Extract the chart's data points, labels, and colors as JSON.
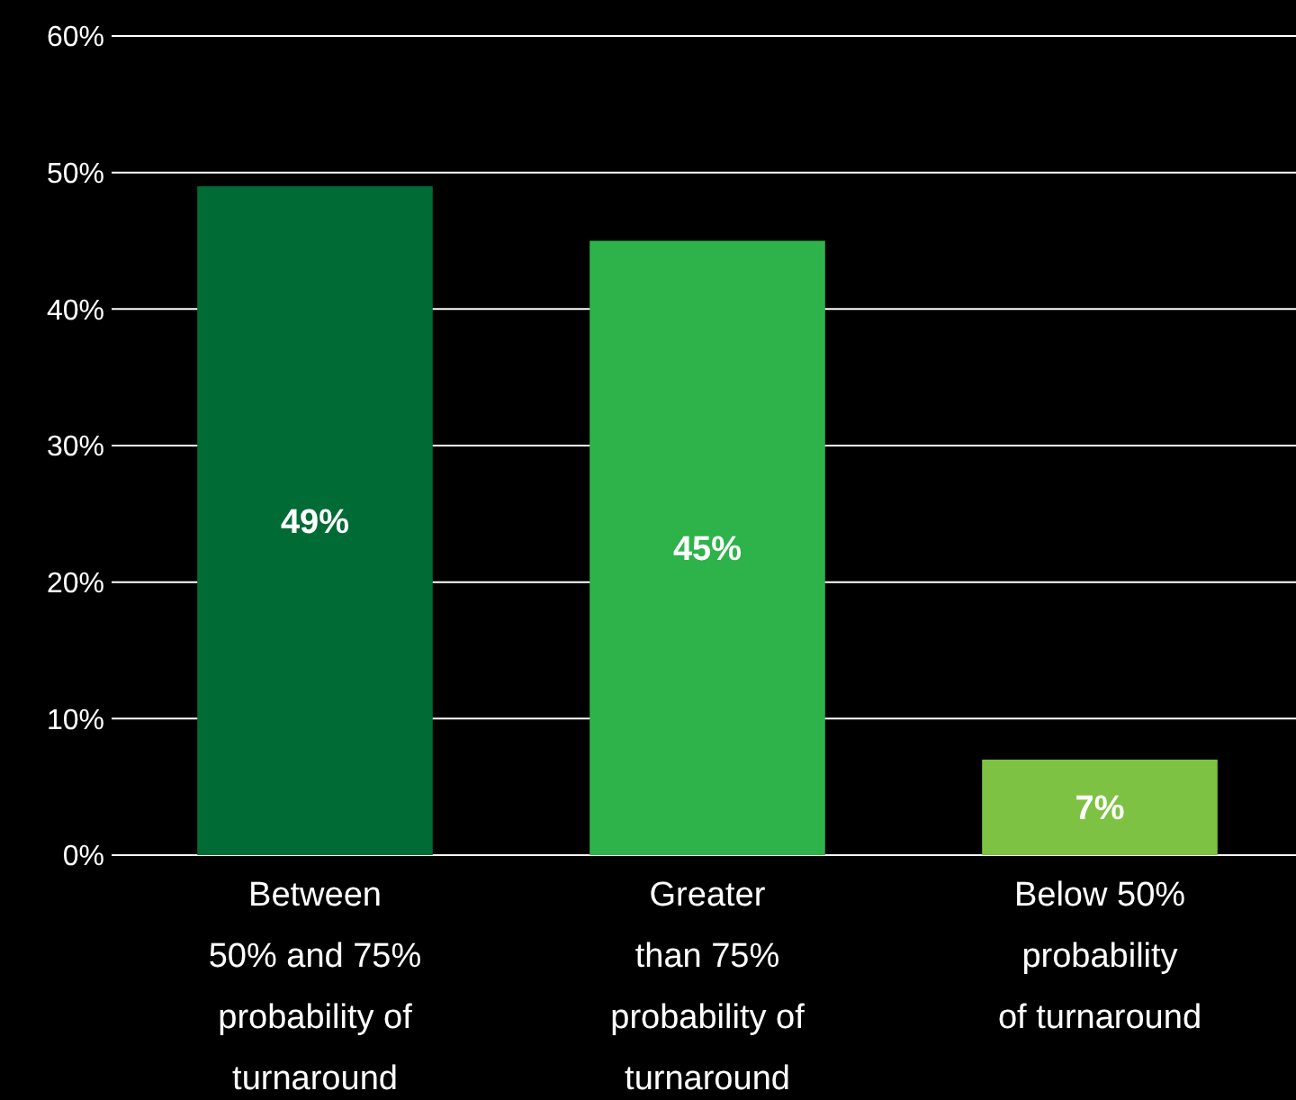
{
  "chart_data": {
    "type": "bar",
    "categories": [
      "Between\n50% and 75%\nprobability of\nturnaround",
      "Greater\nthan 75%\nprobability of\nturnaround",
      "Below 50%\nprobability\nof turnaround"
    ],
    "values": [
      49,
      45,
      7
    ],
    "colors": [
      "#006b35",
      "#2db34a",
      "#7dc242"
    ],
    "ylim": [
      0,
      60
    ],
    "yticks": [
      {
        "value": 0,
        "label": "0%"
      },
      {
        "value": 10,
        "label": "10%"
      },
      {
        "value": 20,
        "label": "20%"
      },
      {
        "value": 30,
        "label": "30%"
      },
      {
        "value": 40,
        "label": "40%"
      },
      {
        "value": 50,
        "label": "50%"
      },
      {
        "value": 60,
        "label": "60%"
      }
    ],
    "grid": "y",
    "value_labels": [
      "49%",
      "45%",
      "7%"
    ]
  }
}
